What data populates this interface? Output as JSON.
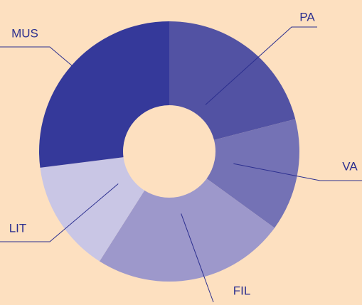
{
  "chart_data": {
    "type": "pie",
    "donut": true,
    "categories": [
      "PA",
      "VA",
      "FIL",
      "LIT",
      "MUS"
    ],
    "values": [
      21,
      14,
      24,
      14,
      27
    ],
    "colors": [
      "#5252a3",
      "#7472b5",
      "#9d98cb",
      "#c9c6e5",
      "#35399a"
    ]
  }
}
